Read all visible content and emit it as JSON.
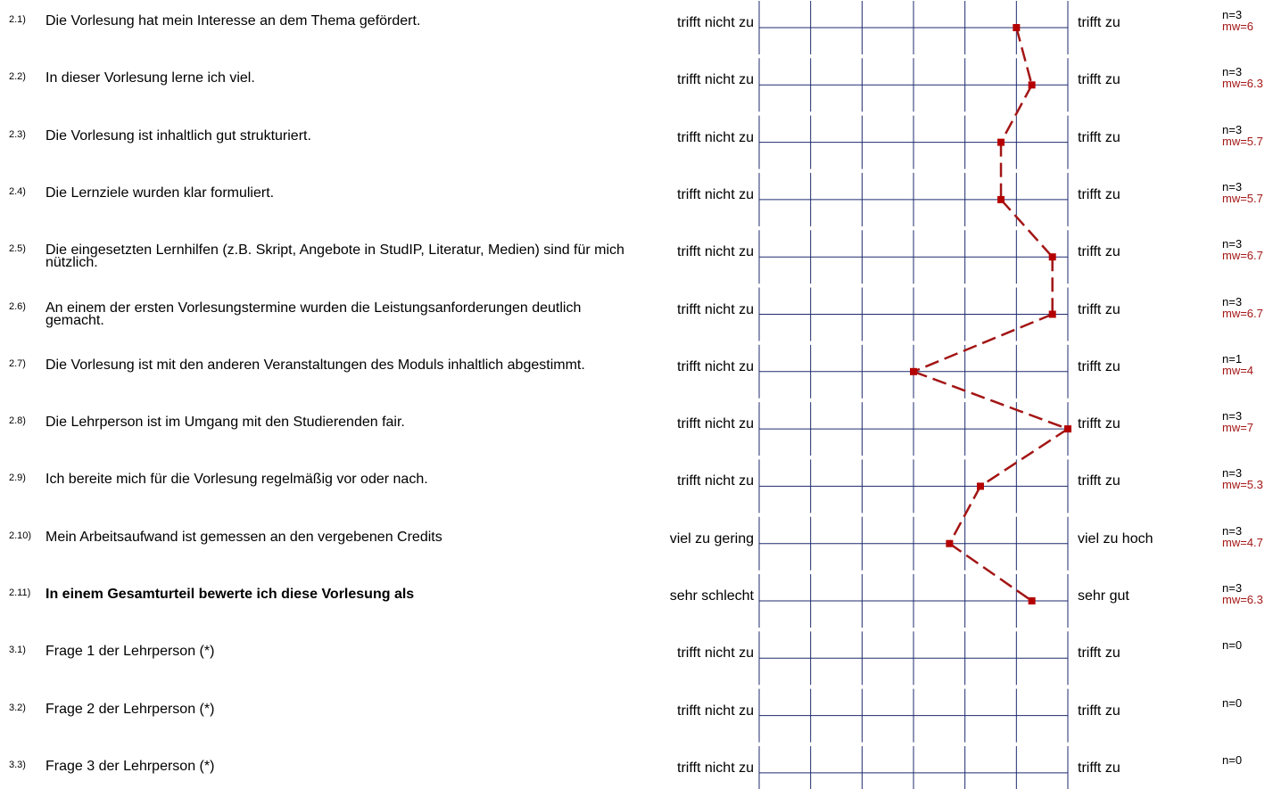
{
  "colors": {
    "grid": "#1f2a6e",
    "profile_line": "#a31515",
    "marker": "#b40000",
    "mean_text": "#a31515"
  },
  "chart_data": {
    "type": "line",
    "orientation": "vertical-profile",
    "scale_min": 1,
    "scale_max": 7,
    "grid": true,
    "line_style": "dashed",
    "items": [
      {
        "num": "2.1)",
        "text": "Die Vorlesung hat mein Interesse an dem Thema gefördert.",
        "left": "trifft nicht zu",
        "right": "trifft zu",
        "n": "n=3",
        "mw_label": "mw=6",
        "mw": 6,
        "bold": false
      },
      {
        "num": "2.2)",
        "text": "In dieser Vorlesung lerne ich viel.",
        "left": "trifft nicht zu",
        "right": "trifft zu",
        "n": "n=3",
        "mw_label": "mw=6.3",
        "mw": 6.3,
        "bold": false
      },
      {
        "num": "2.3)",
        "text": "Die Vorlesung ist inhaltlich gut strukturiert.",
        "left": "trifft nicht zu",
        "right": "trifft zu",
        "n": "n=3",
        "mw_label": "mw=5.7",
        "mw": 5.7,
        "bold": false
      },
      {
        "num": "2.4)",
        "text": "Die Lernziele wurden klar formuliert.",
        "left": "trifft nicht zu",
        "right": "trifft zu",
        "n": "n=3",
        "mw_label": "mw=5.7",
        "mw": 5.7,
        "bold": false
      },
      {
        "num": "2.5)",
        "text": "Die eingesetzten Lernhilfen (z.B. Skript, Angebote in StudIP, Literatur, Medien) sind für mich nützlich.",
        "left": "trifft nicht zu",
        "right": "trifft zu",
        "n": "n=3",
        "mw_label": "mw=6.7",
        "mw": 6.7,
        "bold": false
      },
      {
        "num": "2.6)",
        "text": "An einem der ersten Vorlesungstermine wurden die Leistungsanforderungen deutlich gemacht.",
        "left": "trifft nicht zu",
        "right": "trifft zu",
        "n": "n=3",
        "mw_label": "mw=6.7",
        "mw": 6.7,
        "bold": false
      },
      {
        "num": "2.7)",
        "text": "Die Vorlesung ist mit den anderen Veranstaltungen des Moduls inhaltlich abgestimmt.",
        "left": "trifft nicht zu",
        "right": "trifft zu",
        "n": "n=1",
        "mw_label": "mw=4",
        "mw": 4,
        "bold": false
      },
      {
        "num": "2.8)",
        "text": "Die Lehrperson ist im Umgang mit den Studierenden fair.",
        "left": "trifft nicht zu",
        "right": "trifft zu",
        "n": "n=3",
        "mw_label": "mw=7",
        "mw": 7,
        "bold": false
      },
      {
        "num": "2.9)",
        "text": "Ich bereite mich für die Vorlesung regelmäßig vor oder nach.",
        "left": "trifft nicht zu",
        "right": "trifft zu",
        "n": "n=3",
        "mw_label": "mw=5.3",
        "mw": 5.3,
        "bold": false
      },
      {
        "num": "2.10)",
        "text": "Mein Arbeitsaufwand ist gemessen an den vergebenen Credits",
        "left": "viel zu gering",
        "right": "viel zu hoch",
        "n": "n=3",
        "mw_label": "mw=4.7",
        "mw": 4.7,
        "bold": false
      },
      {
        "num": "2.11)",
        "text": "In einem Gesamturteil bewerte ich diese Vorlesung als",
        "left": "sehr schlecht",
        "right": "sehr gut",
        "n": "n=3",
        "mw_label": "mw=6.3",
        "mw": 6.3,
        "bold": true
      },
      {
        "num": "3.1)",
        "text": "Frage 1 der Lehrperson (*)",
        "left": "trifft nicht zu",
        "right": "trifft zu",
        "n": "n=0",
        "mw_label": "",
        "mw": null,
        "bold": false
      },
      {
        "num": "3.2)",
        "text": "Frage 2 der Lehrperson (*)",
        "left": "trifft nicht zu",
        "right": "trifft zu",
        "n": "n=0",
        "mw_label": "",
        "mw": null,
        "bold": false
      },
      {
        "num": "3.3)",
        "text": "Frage 3 der Lehrperson (*)",
        "left": "trifft nicht zu",
        "right": "trifft zu",
        "n": "n=0",
        "mw_label": "",
        "mw": null,
        "bold": false
      }
    ]
  }
}
